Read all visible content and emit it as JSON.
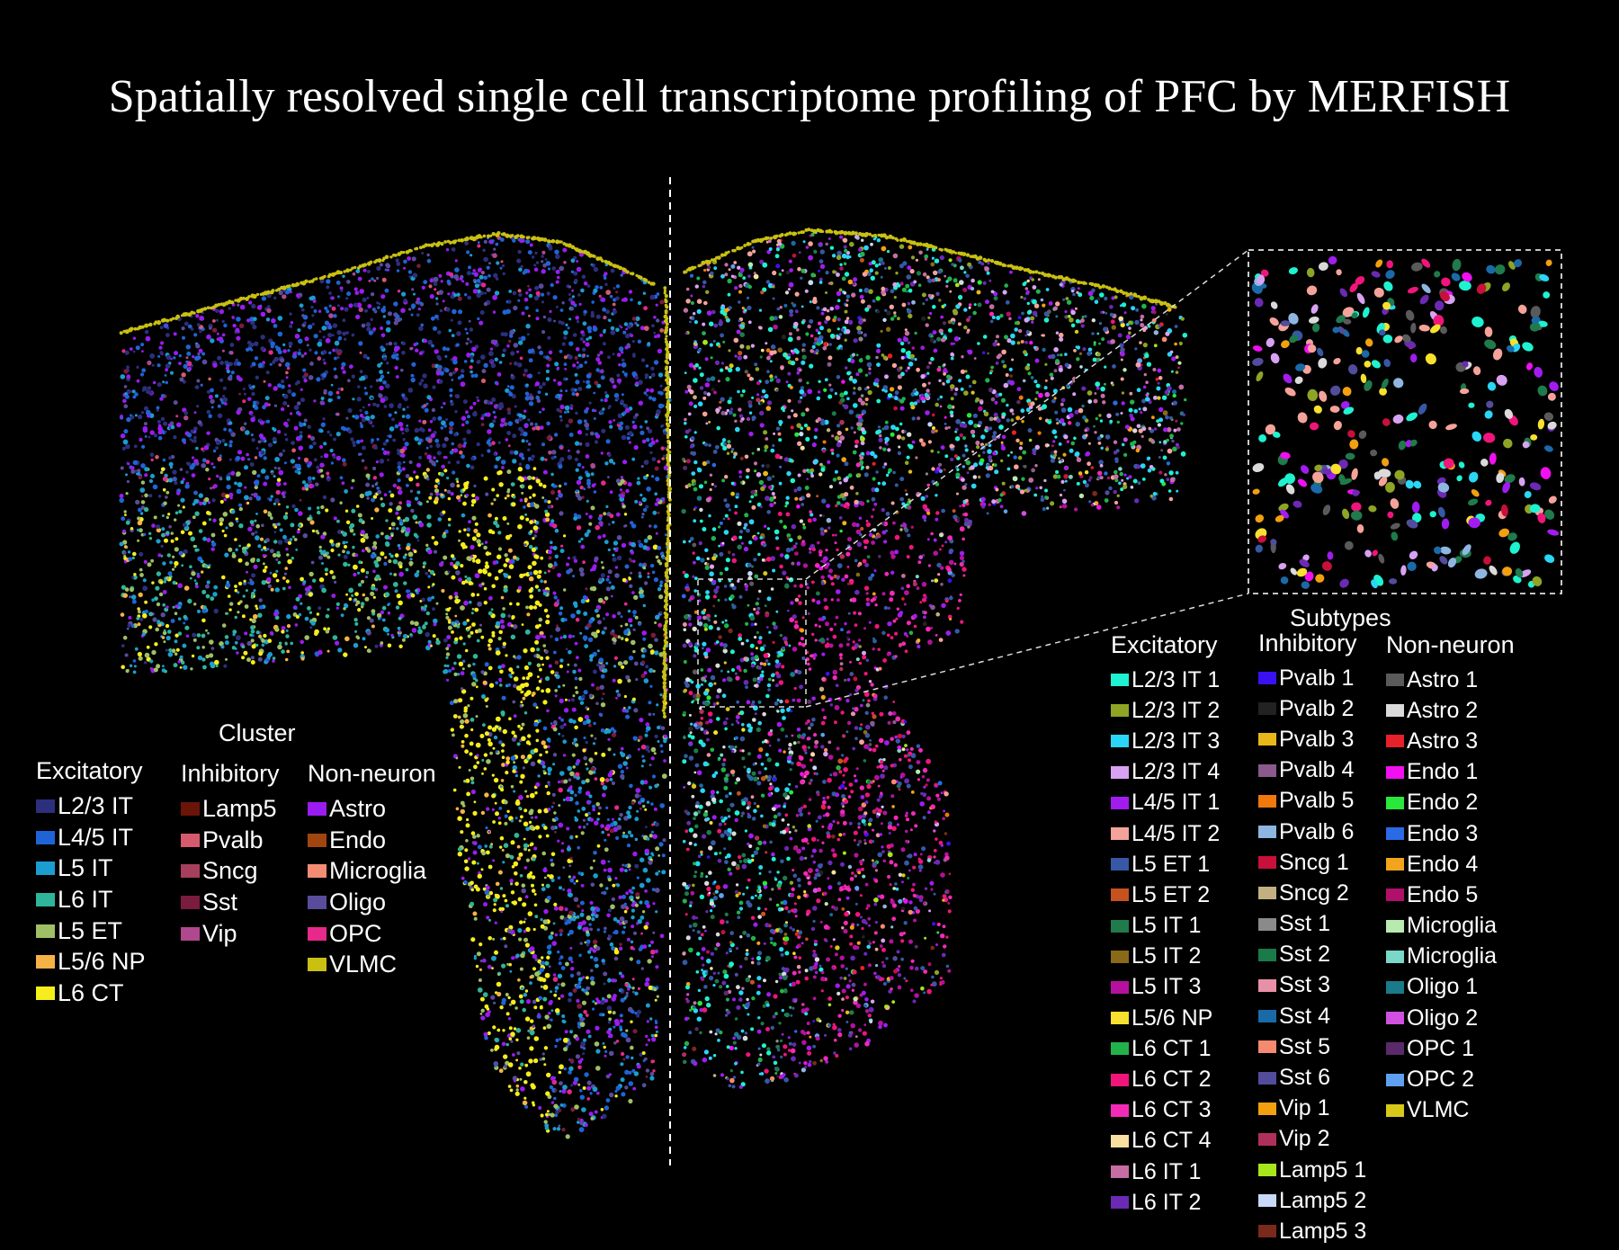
{
  "title": "Spatially resolved single cell transcriptome profiling of PFC by MERFISH",
  "cluster_legend": {
    "title": "Cluster",
    "columns": [
      {
        "heading": "Excitatory",
        "items": [
          {
            "label": "L2/3 IT",
            "color": "#2c2f7c"
          },
          {
            "label": "L4/5 IT",
            "color": "#1f64d6"
          },
          {
            "label": "L5 IT",
            "color": "#1b9dcf"
          },
          {
            "label": "L6 IT",
            "color": "#2fb59a"
          },
          {
            "label": "L5 ET",
            "color": "#9fbf64"
          },
          {
            "label": "L5/6 NP",
            "color": "#f7b246"
          },
          {
            "label": "L6 CT",
            "color": "#f5ee1c"
          }
        ]
      },
      {
        "heading": "Inhibitory",
        "items": [
          {
            "label": "Lamp5",
            "color": "#6b1508"
          },
          {
            "label": "Pvalb",
            "color": "#d65a6e"
          },
          {
            "label": "Sncg",
            "color": "#a6405c"
          },
          {
            "label": "Sst",
            "color": "#7a1c3e"
          },
          {
            "label": "Vip",
            "color": "#b0488e"
          }
        ]
      },
      {
        "heading": "Non-neuron",
        "items": [
          {
            "label": "Astro",
            "color": "#9b1cf0"
          },
          {
            "label": "Endo",
            "color": "#a14510"
          },
          {
            "label": "Microglia",
            "color": "#f48c74"
          },
          {
            "label": "Oligo",
            "color": "#5a4c9c"
          },
          {
            "label": "OPC",
            "color": "#e6298a"
          },
          {
            "label": "VLMC",
            "color": "#c9c012"
          }
        ]
      }
    ]
  },
  "subtype_legend": {
    "title": "Subtypes",
    "columns": [
      {
        "heading": "Excitatory",
        "items": [
          {
            "label": "L2/3 IT 1",
            "color": "#1ef2d0"
          },
          {
            "label": "L2/3 IT 2",
            "color": "#8ea424"
          },
          {
            "label": "L2/3 IT 3",
            "color": "#2ad6f6"
          },
          {
            "label": "L2/3 IT 4",
            "color": "#d8a2f2"
          },
          {
            "label": "L4/5 IT 1",
            "color": "#a21cf0"
          },
          {
            "label": "L4/5 IT 2",
            "color": "#f5a39a"
          },
          {
            "label": "L5 ET 1",
            "color": "#3658a6"
          },
          {
            "label": "L5 ET 2",
            "color": "#c8521f"
          },
          {
            "label": "L5 IT 1",
            "color": "#1f7a4c"
          },
          {
            "label": "L5 IT 2",
            "color": "#8a6a18"
          },
          {
            "label": "L5 IT 3",
            "color": "#b4129e"
          },
          {
            "label": "L5/6 NP",
            "color": "#f7e02e"
          },
          {
            "label": "L6 CT 1",
            "color": "#22b24c"
          },
          {
            "label": "L6 CT 2",
            "color": "#f0157a"
          },
          {
            "label": "L6 CT 3",
            "color": "#f32ab6"
          },
          {
            "label": "L6 CT 4",
            "color": "#f7e0a0"
          },
          {
            "label": "L6 IT 1",
            "color": "#c66ea4"
          },
          {
            "label": "L6 IT 2",
            "color": "#6a2ab4"
          }
        ]
      },
      {
        "heading": "Inhibitory",
        "items": [
          {
            "label": "Pvalb 1",
            "color": "#3a12f2"
          },
          {
            "label": "Pvalb 2",
            "color": "#222222"
          },
          {
            "label": "Pvalb 3",
            "color": "#e8b81a"
          },
          {
            "label": "Pvalb 4",
            "color": "#8a5a8c"
          },
          {
            "label": "Pvalb 5",
            "color": "#f0780c"
          },
          {
            "label": "Pvalb 6",
            "color": "#8fb6e0"
          },
          {
            "label": "Sncg 1",
            "color": "#c8103a"
          },
          {
            "label": "Sncg 2",
            "color": "#c2b080"
          },
          {
            "label": "Sst 1",
            "color": "#8a8a8a"
          },
          {
            "label": "Sst 2",
            "color": "#1a7a4a"
          },
          {
            "label": "Sst 3",
            "color": "#e890a8"
          },
          {
            "label": "Sst 4",
            "color": "#1a6aa8"
          },
          {
            "label": "Sst 5",
            "color": "#f58a70"
          },
          {
            "label": "Sst 6",
            "color": "#524c9c"
          },
          {
            "label": "Vip 1",
            "color": "#f2a010"
          },
          {
            "label": "Vip 2",
            "color": "#b0305c"
          },
          {
            "label": "Lamp5 1",
            "color": "#a6e61c"
          },
          {
            "label": "Lamp5 2",
            "color": "#c8d8f8"
          },
          {
            "label": "Lamp5 3",
            "color": "#7a2a1a"
          }
        ]
      },
      {
        "heading": "Non-neuron",
        "items": [
          {
            "label": "Astro 1",
            "color": "#5a5a5a"
          },
          {
            "label": "Astro 2",
            "color": "#dadada"
          },
          {
            "label": "Astro 3",
            "color": "#e8202a"
          },
          {
            "label": "Endo 1",
            "color": "#f010f0"
          },
          {
            "label": "Endo 2",
            "color": "#28e83c"
          },
          {
            "label": "Endo 3",
            "color": "#2a6ae6"
          },
          {
            "label": "Endo 4",
            "color": "#f2a41c"
          },
          {
            "label": "Endo 5",
            "color": "#b0106a"
          },
          {
            "label": "Microglia",
            "color": "#b8eab0"
          },
          {
            "label": "Microglia",
            "color": "#7ad8c8"
          },
          {
            "label": "Oligo 1",
            "color": "#1a7a8a"
          },
          {
            "label": "Oligo 2",
            "color": "#d050e0"
          },
          {
            "label": "OPC 1",
            "color": "#5a2a6a"
          },
          {
            "label": "OPC 2",
            "color": "#60a0f0"
          },
          {
            "label": "VLMC",
            "color": "#d8c81a"
          }
        ]
      }
    ]
  }
}
